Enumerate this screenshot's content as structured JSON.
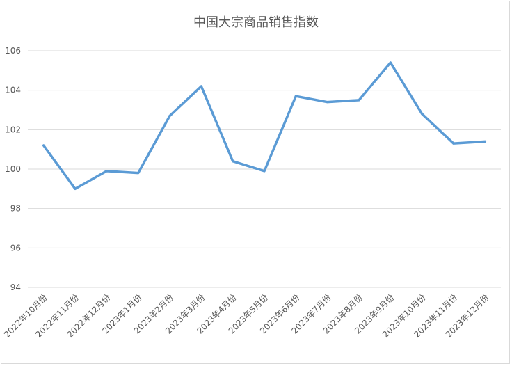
{
  "chart_data": {
    "type": "line",
    "title": "中国大宗商品销售指数",
    "xlabel": "",
    "ylabel": "",
    "ylim": [
      94,
      106
    ],
    "yticks": [
      94,
      96,
      98,
      100,
      102,
      104,
      106
    ],
    "grid": true,
    "legend": "none",
    "line_color": "#5b9bd5",
    "categories": [
      "2022年10月份",
      "2022年11月份",
      "2022年12月份",
      "2023年1月份",
      "2023年2月份",
      "2023年3月份",
      "2023年4月份",
      "2023年5月份",
      "2023年6月份",
      "2023年7月份",
      "2023年8月份",
      "2023年9月份",
      "2023年10月份",
      "2023年11月份",
      "2023年12月份"
    ],
    "values": [
      101.2,
      99.0,
      99.9,
      99.8,
      102.7,
      104.2,
      100.4,
      99.9,
      103.7,
      103.4,
      103.5,
      105.4,
      102.8,
      101.3,
      101.4
    ]
  }
}
